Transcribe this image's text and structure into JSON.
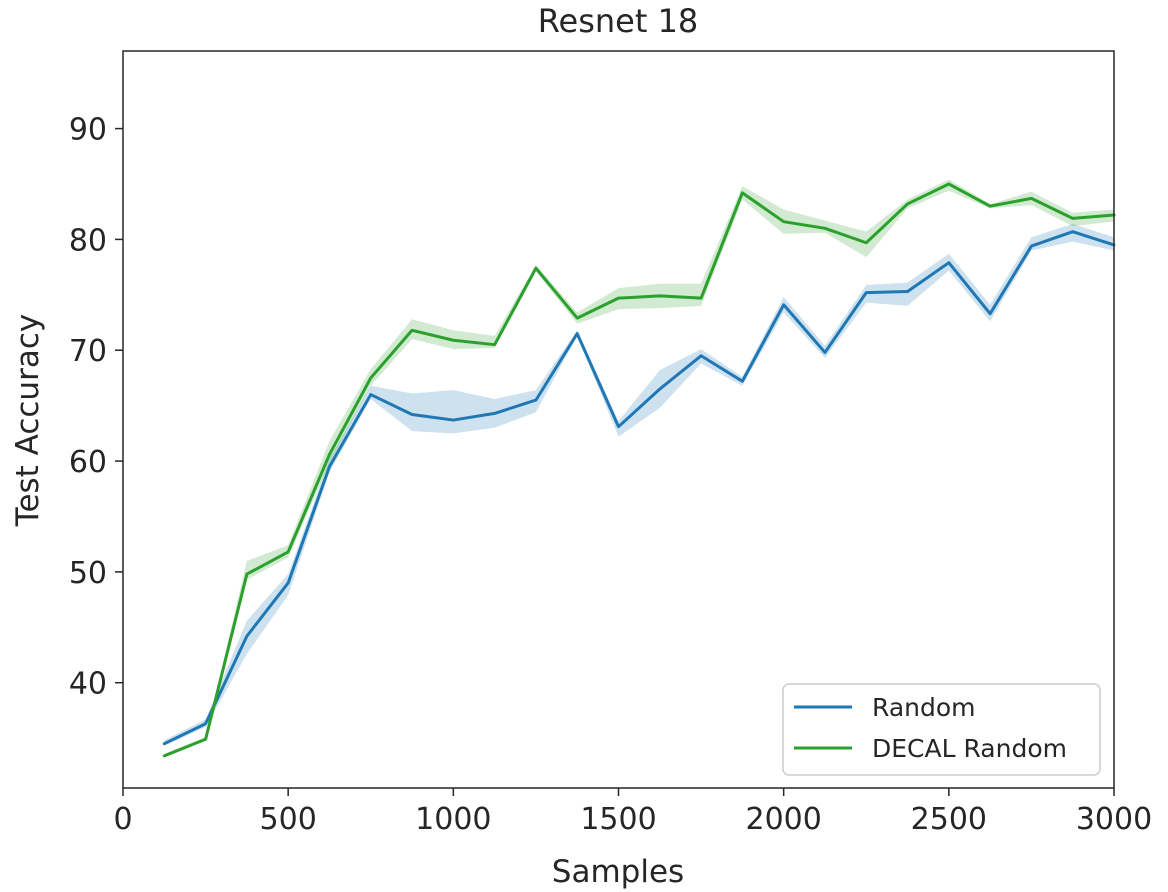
{
  "chart_data": {
    "type": "line",
    "title": "Resnet 18",
    "xlabel": "Samples",
    "ylabel": "Test Accuracy",
    "xlim": [
      0,
      3000
    ],
    "ylim": [
      30.5,
      97
    ],
    "xticks": [
      0,
      500,
      1000,
      1500,
      2000,
      2500,
      3000
    ],
    "yticks": [
      40,
      50,
      60,
      70,
      80,
      90
    ],
    "grid": false,
    "legend_position": "lower-right",
    "x": [
      125,
      250,
      375,
      500,
      625,
      750,
      875,
      1000,
      1125,
      1250,
      1375,
      1500,
      1625,
      1750,
      1875,
      2000,
      2125,
      2250,
      2375,
      2500,
      2625,
      2750,
      2875,
      3000
    ],
    "series": [
      {
        "name": "Random",
        "color": "#1f77b4",
        "values": [
          34.5,
          36.3,
          44.2,
          49.0,
          59.5,
          66.0,
          64.2,
          63.7,
          64.3,
          65.5,
          71.5,
          63.1,
          66.5,
          69.5,
          67.2,
          74.1,
          69.8,
          75.2,
          75.3,
          77.9,
          73.3,
          79.4,
          80.7,
          79.5
        ],
        "lower": [
          34.3,
          36.0,
          42.6,
          47.9,
          59.0,
          65.6,
          62.7,
          62.5,
          63.0,
          64.4,
          71.3,
          62.2,
          64.8,
          68.8,
          66.8,
          73.4,
          69.3,
          74.3,
          74.0,
          77.2,
          72.6,
          79.0,
          79.8,
          79.0
        ],
        "upper": [
          34.8,
          36.7,
          45.6,
          49.8,
          60.2,
          66.8,
          66.1,
          66.4,
          65.6,
          66.4,
          71.8,
          63.6,
          68.2,
          70.1,
          67.6,
          74.8,
          70.4,
          75.9,
          76.1,
          78.7,
          74.1,
          80.2,
          81.4,
          80.2
        ]
      },
      {
        "name": "DECAL Random",
        "color": "#2ca02c",
        "values": [
          33.4,
          34.9,
          49.8,
          51.8,
          60.6,
          67.5,
          71.8,
          70.9,
          70.5,
          77.4,
          72.9,
          74.7,
          74.9,
          74.7,
          84.2,
          81.6,
          81.0,
          79.7,
          83.2,
          85.0,
          83.0,
          83.7,
          81.9,
          82.2
        ],
        "lower": [
          33.3,
          34.8,
          49.3,
          51.3,
          59.8,
          66.8,
          71.0,
          70.1,
          70.2,
          77.1,
          72.4,
          73.7,
          73.8,
          74.0,
          83.6,
          80.5,
          80.6,
          78.4,
          82.8,
          84.4,
          82.8,
          83.1,
          81.2,
          81.6
        ],
        "upper": [
          33.6,
          35.1,
          51.0,
          52.4,
          61.8,
          68.3,
          72.8,
          71.8,
          71.3,
          77.7,
          73.4,
          75.6,
          76.0,
          76.0,
          84.8,
          82.7,
          81.7,
          80.7,
          83.6,
          85.4,
          83.2,
          84.3,
          82.4,
          82.7
        ]
      }
    ],
    "legend": [
      "Random",
      "DECAL Random"
    ]
  }
}
